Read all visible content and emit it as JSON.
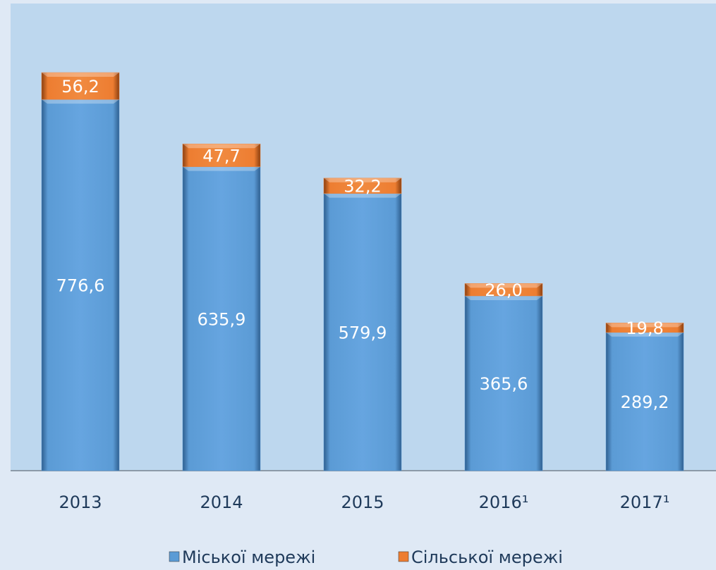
{
  "chart_data": {
    "type": "stacked_bar",
    "categories": [
      "2013",
      "2014",
      "2015",
      "2016¹",
      "2017¹"
    ],
    "series": [
      {
        "name": "Міської мережі",
        "color": "#5b9bd5",
        "values": [
          776.6,
          635.9,
          579.9,
          365.6,
          289.2
        ],
        "value_labels": [
          "776,6",
          "635,9",
          "579,9",
          "365,6",
          "289,2"
        ]
      },
      {
        "name": "Сільської мережі",
        "color": "#ed7d31",
        "values": [
          56.2,
          47.7,
          32.2,
          26.0,
          19.8
        ],
        "value_labels": [
          "56,2",
          "47,7",
          "32,2",
          "26,0",
          "19,8"
        ]
      }
    ],
    "legend": "bottom"
  }
}
